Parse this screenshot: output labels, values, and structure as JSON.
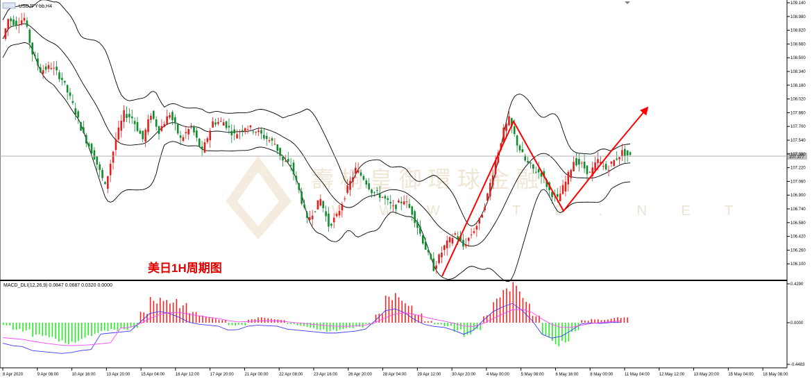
{
  "window": {
    "symbol": "USDJPY-bb,H4"
  },
  "annotation": {
    "title": "美日1H周期图"
  },
  "watermark": {
    "main": "壽 桐 皇 御 環 球 金 融",
    "sub": "W W W . T B . N E T"
  },
  "chart_data": [
    {
      "type": "candlestick",
      "instrument": "USDJPY-bb,H4",
      "ylim": [
        105.94,
        109.14
      ],
      "yticks": [
        "109.140",
        "108.980",
        "108.820",
        "108.660",
        "108.500",
        "108.340",
        "108.180",
        "108.020",
        "107.860",
        "107.700",
        "107.540",
        "107.380",
        "107.220",
        "107.060",
        "106.900",
        "106.740",
        "106.580",
        "106.420",
        "106.260",
        "106.100"
      ],
      "current_price": "107.377",
      "overlays": [
        "Bollinger Bands (upper, middle, lower)"
      ],
      "pivots": [
        {
          "i": 0,
          "v": 108.72
        },
        {
          "i": 2,
          "v": 108.95
        },
        {
          "i": 5,
          "v": 108.9
        },
        {
          "i": 8,
          "v": 108.96
        },
        {
          "i": 11,
          "v": 108.55
        },
        {
          "i": 14,
          "v": 108.35
        },
        {
          "i": 18,
          "v": 108.4
        },
        {
          "i": 22,
          "v": 108.25
        },
        {
          "i": 26,
          "v": 107.95
        },
        {
          "i": 30,
          "v": 107.6
        },
        {
          "i": 34,
          "v": 107.35
        },
        {
          "i": 38,
          "v": 107.0
        },
        {
          "i": 42,
          "v": 107.55
        },
        {
          "i": 45,
          "v": 107.85
        },
        {
          "i": 48,
          "v": 107.8
        },
        {
          "i": 52,
          "v": 107.55
        },
        {
          "i": 55,
          "v": 107.85
        },
        {
          "i": 58,
          "v": 107.65
        },
        {
          "i": 62,
          "v": 107.85
        },
        {
          "i": 66,
          "v": 107.55
        },
        {
          "i": 70,
          "v": 107.7
        },
        {
          "i": 74,
          "v": 107.4
        },
        {
          "i": 78,
          "v": 107.75
        },
        {
          "i": 82,
          "v": 107.75
        },
        {
          "i": 86,
          "v": 107.6
        },
        {
          "i": 90,
          "v": 107.7
        },
        {
          "i": 94,
          "v": 107.65
        },
        {
          "i": 97,
          "v": 107.58
        },
        {
          "i": 101,
          "v": 107.5
        },
        {
          "i": 104,
          "v": 107.3
        },
        {
          "i": 107,
          "v": 107.25
        },
        {
          "i": 110,
          "v": 106.95
        },
        {
          "i": 113,
          "v": 106.6
        },
        {
          "i": 115,
          "v": 106.7
        },
        {
          "i": 118,
          "v": 106.85
        },
        {
          "i": 121,
          "v": 106.55
        },
        {
          "i": 124,
          "v": 106.65
        },
        {
          "i": 127,
          "v": 106.9
        },
        {
          "i": 131,
          "v": 107.2
        },
        {
          "i": 134,
          "v": 107.1
        },
        {
          "i": 137,
          "v": 106.95
        },
        {
          "i": 141,
          "v": 106.88
        },
        {
          "i": 145,
          "v": 106.75
        },
        {
          "i": 149,
          "v": 106.85
        },
        {
          "i": 152,
          "v": 106.7
        },
        {
          "i": 155,
          "v": 106.45
        },
        {
          "i": 158,
          "v": 106.2
        },
        {
          "i": 160,
          "v": 106.05
        },
        {
          "i": 164,
          "v": 106.3
        },
        {
          "i": 168,
          "v": 106.45
        },
        {
          "i": 171,
          "v": 106.3
        },
        {
          "i": 174,
          "v": 106.45
        },
        {
          "i": 177,
          "v": 106.6
        },
        {
          "i": 180,
          "v": 106.9
        },
        {
          "i": 183,
          "v": 107.3
        },
        {
          "i": 186,
          "v": 107.65
        },
        {
          "i": 188,
          "v": 107.78
        },
        {
          "i": 191,
          "v": 107.5
        },
        {
          "i": 194,
          "v": 107.3
        },
        {
          "i": 197,
          "v": 107.2
        },
        {
          "i": 200,
          "v": 107.15
        },
        {
          "i": 203,
          "v": 106.95
        },
        {
          "i": 206,
          "v": 106.85
        },
        {
          "i": 209,
          "v": 107.05
        },
        {
          "i": 212,
          "v": 107.3
        },
        {
          "i": 215,
          "v": 107.25
        },
        {
          "i": 218,
          "v": 107.15
        },
        {
          "i": 221,
          "v": 107.3
        },
        {
          "i": 224,
          "v": 107.2
        },
        {
          "i": 227,
          "v": 107.3
        },
        {
          "i": 230,
          "v": 107.4
        },
        {
          "i": 233,
          "v": 107.35
        }
      ],
      "xticks": [
        "8 Apr 2020",
        "9 Apr 08:00",
        "10 Apr 16:00",
        "13 Apr 20:00",
        "15 Apr 04:00",
        "16 Apr 12:00",
        "17 Apr 20:00",
        "21 Apr 00:00",
        "22 Apr 08:00",
        "23 Apr 16:00",
        "26 Apr 20:00",
        "28 Apr 04:00",
        "29 Apr 12:00",
        "30 Apr 20:00",
        "4 May 00:00",
        "5 May 08:00",
        "6 May 16:00",
        "8 May 00:00",
        "11 May 04:00",
        "12 May 12:00",
        "13 May 20:00",
        "15 May 04:00",
        "18 May 08:00"
      ],
      "annotations": [
        "red zigzag trend line",
        "red up arrow"
      ]
    },
    {
      "type": "bar",
      "indicator": "MACD_DLI(12,26,9)",
      "values_label": "0.0847 0.0687 0.0320 0.0000",
      "ylim": [
        -0.4483,
        0.429
      ],
      "yticks": [
        "0.4290",
        "0.0000",
        "-0.4483"
      ],
      "histogram": [
        -0.03,
        -0.08,
        -0.1,
        -0.18,
        -0.2,
        -0.22,
        -0.24,
        -0.22,
        -0.18,
        -0.16,
        -0.12,
        -0.1,
        -0.08,
        -0.06,
        0.12,
        0.3,
        0.34,
        0.3,
        0.22,
        0.12,
        0.08,
        0.06,
        0.04,
        -0.04,
        -0.03,
        0.04,
        0.06,
        0.05,
        0.04,
        -0.02,
        -0.04,
        -0.06,
        -0.08,
        -0.1,
        -0.1,
        -0.08,
        -0.06,
        -0.02,
        0.1,
        0.3,
        0.34,
        0.26,
        0.12,
        0.02,
        -0.02,
        -0.04,
        -0.1,
        -0.18,
        -0.1,
        0.1,
        0.28,
        0.38,
        0.45,
        0.3,
        0.1,
        -0.18,
        -0.26,
        -0.22,
        -0.1,
        0.03,
        0.05,
        0.04,
        0.06,
        0.06
      ],
      "series": [
        {
          "name": "MACD",
          "color": "#3a3aff"
        },
        {
          "name": "Signal",
          "color": "#ff44ff"
        }
      ]
    }
  ]
}
